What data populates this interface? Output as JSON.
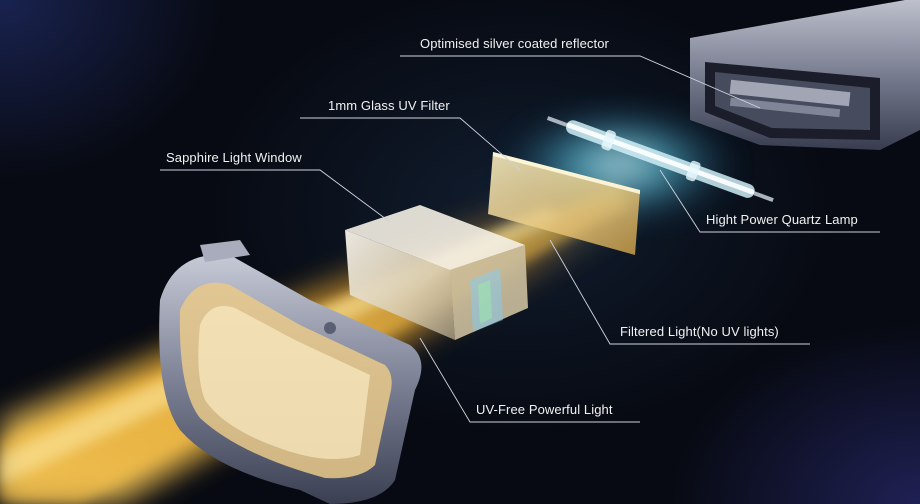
{
  "labels": {
    "reflector": "Optimised silver coated reflector",
    "uv_filter": "1mm Glass UV Filter",
    "sapphire_window": "Sapphire Light Window",
    "quartz_lamp": "Hight Power Quartz Lamp",
    "filtered_light": "Filtered Light(No UV lights)",
    "uv_free_light": "UV-Free Powerful Light"
  },
  "colors": {
    "light_beam": "#ffb62e",
    "lamp_glow": "#6fe6ff",
    "housing": "#8a8fa6",
    "leader_line": "#cfd3dc"
  }
}
